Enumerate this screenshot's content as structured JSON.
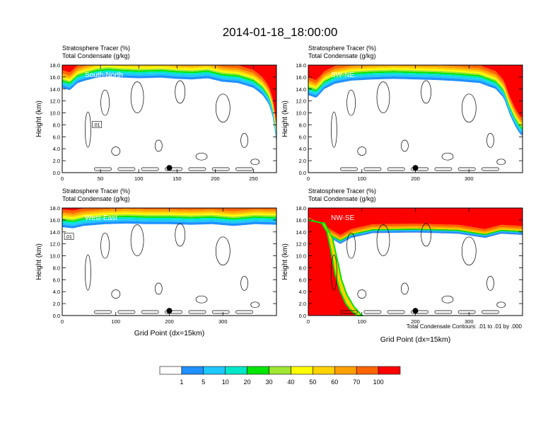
{
  "figure": {
    "title": "2014-01-18_18:00:00",
    "footnote": "Total Condensate Contours: .01 to .01 by .000"
  },
  "chart_data": [
    {
      "type": "heatmap",
      "panel_label": "South-North",
      "header_line1": "Stratosphere Tracer   (%)",
      "header_line2": "Total Condensate   (g/kg)",
      "ylabel": "Height (km)",
      "xlabel": "",
      "xlim": [
        0,
        280
      ],
      "ylim": [
        0,
        18
      ],
      "xticks": [
        0,
        50,
        100,
        150,
        200,
        250
      ],
      "yticks": [
        "0.0",
        "2.0",
        "4.0",
        "6.0",
        "8.0",
        "10.0",
        "12.0",
        "14.0",
        "16.0",
        "18.0"
      ],
      "tracer_bottom": [
        [
          0,
          14.2
        ],
        [
          10,
          13.8
        ],
        [
          20,
          15.0
        ],
        [
          30,
          15.4
        ],
        [
          45,
          15.9
        ],
        [
          60,
          16.1
        ],
        [
          80,
          15.9
        ],
        [
          100,
          15.8
        ],
        [
          130,
          15.9
        ],
        [
          150,
          15.7
        ],
        [
          170,
          15.6
        ],
        [
          190,
          15.8
        ],
        [
          210,
          15.2
        ],
        [
          230,
          15.0
        ],
        [
          250,
          14.2
        ],
        [
          262,
          13.0
        ],
        [
          270,
          11.5
        ],
        [
          275,
          9.5
        ],
        [
          278,
          7.0
        ],
        [
          280,
          5.0
        ]
      ],
      "contour_label": ".01",
      "contour_label_pos": [
        45,
        8.0
      ],
      "marker_x": 140
    },
    {
      "type": "heatmap",
      "panel_label": "SW-NE",
      "header_line1": "Stratosphere Tracer   (%)",
      "header_line2": "Total Condensate   (g/kg)",
      "ylabel": "Height (km)",
      "xlabel": "",
      "xlim": [
        0,
        400
      ],
      "ylim": [
        0,
        18
      ],
      "xticks": [
        0,
        100,
        200,
        300
      ],
      "yticks": [
        "0.0",
        "2.0",
        "4.0",
        "6.0",
        "8.0",
        "10.0",
        "12.0",
        "14.0",
        "16.0",
        "18.0"
      ],
      "tracer_bottom": [
        [
          0,
          13.0
        ],
        [
          15,
          12.5
        ],
        [
          30,
          14.0
        ],
        [
          50,
          14.9
        ],
        [
          80,
          15.4
        ],
        [
          120,
          15.6
        ],
        [
          160,
          15.7
        ],
        [
          200,
          15.6
        ],
        [
          240,
          15.5
        ],
        [
          280,
          15.3
        ],
        [
          320,
          15.0
        ],
        [
          350,
          14.0
        ],
        [
          365,
          12.5
        ],
        [
          375,
          10.0
        ],
        [
          385,
          8.0
        ],
        [
          395,
          6.5
        ],
        [
          400,
          6.2
        ]
      ],
      "contour_label": "",
      "contour_label_pos": [
        0,
        0
      ],
      "marker_x": 200
    },
    {
      "type": "heatmap",
      "panel_label": "West-East",
      "header_line1": "Stratosphere Tracer   (%)",
      "header_line2": "Total Condensate   (g/kg)",
      "ylabel": "Height (km)",
      "xlabel": "Grid Point (dx=15km)",
      "xlim": [
        0,
        400
      ],
      "ylim": [
        0,
        18
      ],
      "xticks": [
        0,
        100,
        200,
        300
      ],
      "yticks": [
        "0.0",
        "2.0",
        "4.0",
        "6.0",
        "8.0",
        "10.0",
        "12.0",
        "14.0",
        "16.0",
        "18.0"
      ],
      "tracer_bottom": [
        [
          0,
          14.8
        ],
        [
          20,
          14.6
        ],
        [
          40,
          15.0
        ],
        [
          80,
          15.3
        ],
        [
          120,
          15.4
        ],
        [
          160,
          15.3
        ],
        [
          200,
          15.3
        ],
        [
          240,
          15.2
        ],
        [
          280,
          15.3
        ],
        [
          320,
          15.0
        ],
        [
          360,
          15.3
        ],
        [
          400,
          15.2
        ]
      ],
      "contour_label": ".01",
      "contour_label_pos": [
        12,
        13.2
      ],
      "marker_x": 200
    },
    {
      "type": "heatmap",
      "panel_label": "NW-SE",
      "header_line1": "Stratosphere Tracer   (%)",
      "header_line2": "Total Condensate   (g/kg)",
      "ylabel": "Height (km)",
      "xlabel": "Grid Point (dx=15km)",
      "xlim": [
        0,
        400
      ],
      "ylim": [
        0,
        18
      ],
      "xticks": [
        0,
        100,
        200,
        300
      ],
      "yticks": [
        "0.0",
        "2.0",
        "4.0",
        "6.0",
        "8.0",
        "10.0",
        "12.0",
        "14.0",
        "16.0",
        "18.0"
      ],
      "tracer_bottom": [
        [
          0,
          6.0
        ],
        [
          20,
          5.5
        ],
        [
          40,
          5.0
        ],
        [
          50,
          4.0
        ],
        [
          60,
          3.0
        ],
        [
          70,
          1.5
        ],
        [
          80,
          0.5
        ],
        [
          100,
          0.0
        ]
      ],
      "tracer_top_band": [
        [
          0,
          16.5
        ],
        [
          40,
          14.5
        ],
        [
          60,
          13.5
        ],
        [
          80,
          14.5
        ],
        [
          120,
          15.3
        ],
        [
          200,
          15.4
        ],
        [
          280,
          15.2
        ],
        [
          330,
          14.5
        ],
        [
          360,
          15.2
        ],
        [
          400,
          15.0
        ]
      ],
      "contour_label": "",
      "contour_label_pos": [
        0,
        0
      ],
      "marker_x": 200
    }
  ],
  "colorbar": {
    "colors": [
      "#ffffff",
      "#1e90ff",
      "#1ec8ff",
      "#00e6c8",
      "#00e600",
      "#a0e632",
      "#ffff00",
      "#ffd200",
      "#ffa000",
      "#ff6400",
      "#ff0000"
    ],
    "labels": [
      "1",
      "5",
      "10",
      "20",
      "30",
      "40",
      "50",
      "60",
      "70",
      "100"
    ]
  }
}
